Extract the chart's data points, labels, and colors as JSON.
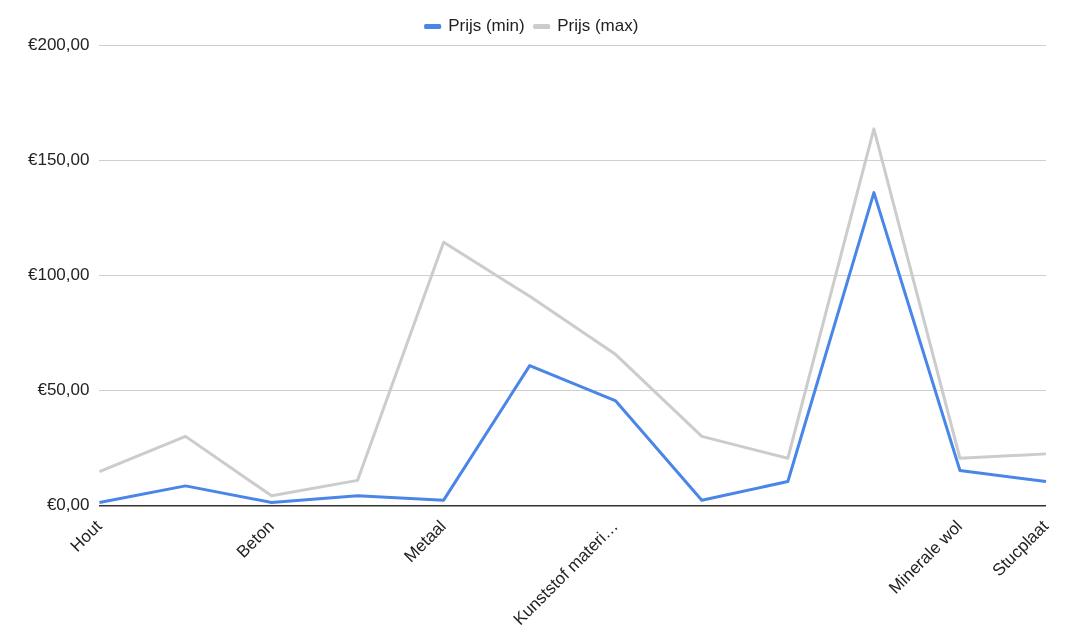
{
  "chart_data": {
    "type": "line",
    "categories": [
      "Hout",
      null,
      "Beton",
      null,
      "Metaal",
      null,
      "Kunststof materi…",
      null,
      null,
      null,
      "Minerale wol",
      "Stucplaat"
    ],
    "series": [
      {
        "name": "Prijs (min)",
        "color": "#4a86e8",
        "values": [
          1.4,
          8.6,
          1.4,
          4.3,
          2.4,
          60.8,
          45.5,
          2.4,
          10.5,
          135.9,
          15.3,
          10.5
        ]
      },
      {
        "name": "Prijs (max)",
        "color": "#cccccc",
        "values": [
          14.8,
          30.1,
          4.3,
          11,
          114.4,
          90.9,
          65.6,
          30.1,
          20.6,
          163.6,
          20.6,
          22.5
        ]
      }
    ],
    "ylim": [
      0,
      200
    ],
    "yticks": [
      {
        "value": 0,
        "label": "€0,00"
      },
      {
        "value": 50,
        "label": "€50,00"
      },
      {
        "value": 100,
        "label": "€100,00"
      },
      {
        "value": 150,
        "label": "€150,00"
      },
      {
        "value": 200,
        "label": "€200,00"
      }
    ],
    "grid": "y",
    "legend": "top",
    "marker": "none",
    "line_style": "solid"
  }
}
